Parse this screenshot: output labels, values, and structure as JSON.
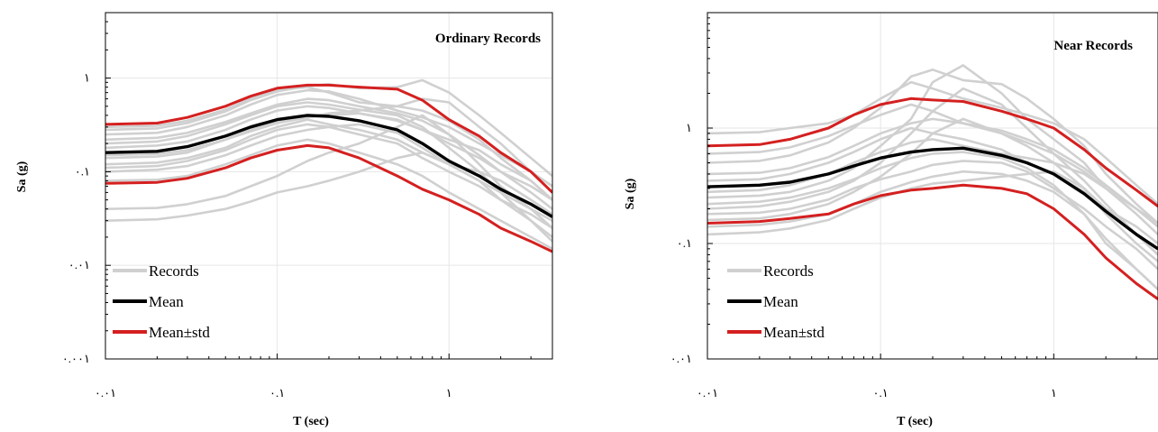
{
  "colors": {
    "records": "#d0d0d0",
    "mean": "#000000",
    "std": "#d42020"
  },
  "chart_data": [
    {
      "type": "line",
      "title": "Ordinary Records",
      "xlabel": "T (sec)",
      "ylabel": "Sa (g)",
      "x_scale": "log",
      "y_scale": "log",
      "xlim": [
        0.01,
        4.0
      ],
      "ylim": [
        0.001,
        5
      ],
      "x_ticks": [
        0.01,
        0.1,
        1
      ],
      "x_tick_labels": [
        "۰.۰۱",
        "۰.۱",
        "۱"
      ],
      "y_ticks": [
        0.001,
        0.01,
        0.1,
        1
      ],
      "y_tick_labels": [
        "۰.۰۰۱",
        "۰.۰۱",
        "۰.۱",
        "۱"
      ],
      "grid": true,
      "legend": {
        "position": "bottom-left",
        "entries": [
          "Records",
          "Mean",
          "Mean±std"
        ]
      },
      "x": [
        0.01,
        0.02,
        0.03,
        0.05,
        0.07,
        0.1,
        0.15,
        0.2,
        0.3,
        0.5,
        0.7,
        1.0,
        1.5,
        2.0,
        3.0,
        4.0
      ],
      "series": [
        {
          "name": "Mean",
          "role": "mean",
          "values": [
            0.16,
            0.165,
            0.185,
            0.24,
            0.3,
            0.36,
            0.4,
            0.39,
            0.35,
            0.28,
            0.2,
            0.13,
            0.09,
            0.065,
            0.045,
            0.033
          ]
        },
        {
          "name": "Mean±std",
          "role": "std",
          "values": [
            0.32,
            0.33,
            0.38,
            0.5,
            0.64,
            0.78,
            0.84,
            0.84,
            0.8,
            0.76,
            0.58,
            0.36,
            0.24,
            0.16,
            0.1,
            0.06
          ]
        },
        {
          "name": "Mean±std",
          "role": "std",
          "values": [
            0.075,
            0.077,
            0.085,
            0.11,
            0.14,
            0.17,
            0.19,
            0.18,
            0.14,
            0.09,
            0.065,
            0.05,
            0.035,
            0.025,
            0.018,
            0.014
          ]
        },
        {
          "role": "record",
          "values": [
            0.22,
            0.23,
            0.26,
            0.34,
            0.42,
            0.52,
            0.6,
            0.58,
            0.5,
            0.42,
            0.35,
            0.25,
            0.15,
            0.1,
            0.07,
            0.05
          ]
        },
        {
          "role": "record",
          "values": [
            0.28,
            0.29,
            0.33,
            0.44,
            0.58,
            0.72,
            0.82,
            0.86,
            0.78,
            0.8,
            0.95,
            0.7,
            0.4,
            0.26,
            0.14,
            0.09
          ]
        },
        {
          "role": "record",
          "values": [
            0.14,
            0.145,
            0.16,
            0.22,
            0.28,
            0.35,
            0.38,
            0.42,
            0.45,
            0.5,
            0.6,
            0.55,
            0.3,
            0.2,
            0.1,
            0.07
          ]
        },
        {
          "role": "record",
          "values": [
            0.12,
            0.125,
            0.14,
            0.18,
            0.24,
            0.3,
            0.36,
            0.32,
            0.28,
            0.22,
            0.16,
            0.12,
            0.08,
            0.06,
            0.04,
            0.03
          ]
        },
        {
          "role": "record",
          "values": [
            0.18,
            0.19,
            0.21,
            0.28,
            0.36,
            0.45,
            0.5,
            0.48,
            0.42,
            0.36,
            0.28,
            0.2,
            0.14,
            0.1,
            0.06,
            0.04
          ]
        },
        {
          "role": "record",
          "values": [
            0.1,
            0.105,
            0.115,
            0.15,
            0.19,
            0.24,
            0.28,
            0.3,
            0.32,
            0.26,
            0.18,
            0.12,
            0.1,
            0.08,
            0.05,
            0.035
          ]
        },
        {
          "role": "record",
          "values": [
            0.25,
            0.26,
            0.3,
            0.4,
            0.52,
            0.66,
            0.74,
            0.72,
            0.6,
            0.45,
            0.38,
            0.3,
            0.2,
            0.15,
            0.1,
            0.07
          ]
        },
        {
          "role": "record",
          "values": [
            0.08,
            0.082,
            0.09,
            0.12,
            0.15,
            0.19,
            0.22,
            0.2,
            0.16,
            0.12,
            0.09,
            0.06,
            0.04,
            0.03,
            0.02,
            0.015
          ]
        },
        {
          "role": "record",
          "values": [
            0.04,
            0.041,
            0.045,
            0.055,
            0.07,
            0.09,
            0.13,
            0.16,
            0.2,
            0.3,
            0.4,
            0.25,
            0.12,
            0.07,
            0.04,
            0.025
          ]
        },
        {
          "role": "record",
          "values": [
            0.03,
            0.031,
            0.034,
            0.04,
            0.048,
            0.06,
            0.07,
            0.08,
            0.1,
            0.14,
            0.16,
            0.12,
            0.08,
            0.05,
            0.03,
            0.02
          ]
        },
        {
          "role": "record",
          "values": [
            0.2,
            0.21,
            0.24,
            0.32,
            0.4,
            0.5,
            0.55,
            0.52,
            0.46,
            0.4,
            0.3,
            0.18,
            0.1,
            0.06,
            0.03,
            0.018
          ]
        },
        {
          "role": "record",
          "values": [
            0.15,
            0.155,
            0.17,
            0.22,
            0.27,
            0.33,
            0.38,
            0.4,
            0.42,
            0.35,
            0.28,
            0.22,
            0.17,
            0.12,
            0.08,
            0.05
          ]
        },
        {
          "role": "record",
          "values": [
            0.3,
            0.31,
            0.35,
            0.46,
            0.6,
            0.75,
            0.8,
            0.7,
            0.55,
            0.5,
            0.45,
            0.35,
            0.22,
            0.14,
            0.08,
            0.05
          ]
        },
        {
          "role": "record",
          "values": [
            0.11,
            0.115,
            0.13,
            0.17,
            0.22,
            0.28,
            0.32,
            0.3,
            0.25,
            0.2,
            0.14,
            0.1,
            0.07,
            0.05,
            0.035,
            0.025
          ]
        }
      ]
    },
    {
      "type": "line",
      "title": "Near Records",
      "xlabel": "T (sec)",
      "ylabel": "Sa (g)",
      "x_scale": "log",
      "y_scale": "log",
      "xlim": [
        0.01,
        4.0
      ],
      "ylim": [
        0.01,
        10
      ],
      "x_ticks": [
        0.01,
        0.1,
        1
      ],
      "x_tick_labels": [
        "۰.۰۱",
        "۰.۱",
        "۱"
      ],
      "y_ticks": [
        0.01,
        0.1,
        1
      ],
      "y_tick_labels": [
        "۰.۰۱",
        "۰.۱",
        "۱"
      ],
      "grid": true,
      "legend": {
        "position": "bottom-left",
        "entries": [
          "Records",
          "Mean",
          "Mean±std"
        ]
      },
      "x": [
        0.01,
        0.02,
        0.03,
        0.05,
        0.07,
        0.1,
        0.15,
        0.2,
        0.3,
        0.5,
        0.7,
        1.0,
        1.5,
        2.0,
        3.0,
        4.0
      ],
      "series": [
        {
          "name": "Mean",
          "role": "mean",
          "values": [
            0.31,
            0.32,
            0.34,
            0.4,
            0.47,
            0.55,
            0.62,
            0.65,
            0.67,
            0.58,
            0.5,
            0.4,
            0.27,
            0.19,
            0.12,
            0.09
          ]
        },
        {
          "name": "Mean±std",
          "role": "std",
          "values": [
            0.7,
            0.72,
            0.8,
            1.0,
            1.3,
            1.6,
            1.8,
            1.75,
            1.7,
            1.4,
            1.2,
            1.0,
            0.65,
            0.45,
            0.29,
            0.21
          ]
        },
        {
          "name": "Mean±std",
          "role": "std",
          "values": [
            0.15,
            0.155,
            0.165,
            0.18,
            0.22,
            0.26,
            0.29,
            0.3,
            0.32,
            0.3,
            0.27,
            0.2,
            0.12,
            0.075,
            0.045,
            0.033
          ]
        },
        {
          "role": "record",
          "values": [
            0.25,
            0.26,
            0.28,
            0.35,
            0.45,
            0.7,
            1.2,
            2.5,
            3.5,
            2.0,
            1.2,
            0.8,
            0.5,
            0.3,
            0.18,
            0.12
          ]
        },
        {
          "role": "record",
          "values": [
            0.5,
            0.52,
            0.58,
            0.75,
            1.0,
            1.5,
            2.8,
            3.2,
            2.6,
            2.4,
            1.8,
            1.2,
            0.7,
            0.4,
            0.22,
            0.15
          ]
        },
        {
          "role": "record",
          "values": [
            0.2,
            0.21,
            0.23,
            0.28,
            0.35,
            0.5,
            0.9,
            1.4,
            2.2,
            1.6,
            1.0,
            0.6,
            0.35,
            0.22,
            0.12,
            0.08
          ]
        },
        {
          "role": "record",
          "values": [
            0.9,
            0.92,
            1.0,
            1.1,
            1.3,
            1.8,
            2.5,
            2.2,
            1.8,
            1.5,
            1.3,
            1.1,
            0.8,
            0.55,
            0.32,
            0.22
          ]
        },
        {
          "role": "record",
          "values": [
            0.16,
            0.165,
            0.18,
            0.22,
            0.28,
            0.38,
            0.6,
            0.9,
            1.2,
            0.9,
            0.7,
            0.5,
            0.3,
            0.18,
            0.1,
            0.07
          ]
        },
        {
          "role": "record",
          "values": [
            0.35,
            0.36,
            0.4,
            0.5,
            0.62,
            0.8,
            1.0,
            0.9,
            0.8,
            0.65,
            0.5,
            0.4,
            0.28,
            0.2,
            0.14,
            0.1
          ]
        },
        {
          "role": "record",
          "values": [
            0.12,
            0.125,
            0.135,
            0.16,
            0.2,
            0.25,
            0.3,
            0.33,
            0.35,
            0.38,
            0.4,
            0.42,
            0.3,
            0.2,
            0.12,
            0.08
          ]
        },
        {
          "role": "record",
          "values": [
            0.6,
            0.62,
            0.68,
            0.85,
            1.05,
            1.3,
            1.6,
            1.4,
            1.1,
            0.9,
            0.75,
            0.6,
            0.42,
            0.3,
            0.2,
            0.14
          ]
        },
        {
          "role": "record",
          "values": [
            0.22,
            0.23,
            0.25,
            0.3,
            0.36,
            0.45,
            0.55,
            0.6,
            0.62,
            0.55,
            0.45,
            0.32,
            0.18,
            0.1,
            0.06,
            0.04
          ]
        },
        {
          "role": "record",
          "values": [
            0.18,
            0.185,
            0.2,
            0.24,
            0.3,
            0.36,
            0.42,
            0.48,
            0.52,
            0.5,
            0.42,
            0.3,
            0.2,
            0.14,
            0.09,
            0.06
          ]
        },
        {
          "role": "record",
          "values": [
            0.28,
            0.29,
            0.32,
            0.4,
            0.5,
            0.62,
            0.75,
            0.8,
            0.7,
            0.6,
            0.55,
            0.5,
            0.4,
            0.3,
            0.2,
            0.15
          ]
        },
        {
          "role": "record",
          "values": [
            0.14,
            0.145,
            0.155,
            0.18,
            0.22,
            0.28,
            0.34,
            0.38,
            0.42,
            0.4,
            0.35,
            0.28,
            0.18,
            0.11,
            0.06,
            0.04
          ]
        },
        {
          "role": "record",
          "values": [
            0.4,
            0.41,
            0.45,
            0.56,
            0.7,
            0.9,
            1.1,
            1.2,
            1.1,
            0.95,
            0.8,
            0.65,
            0.45,
            0.32,
            0.2,
            0.14
          ]
        }
      ]
    }
  ]
}
